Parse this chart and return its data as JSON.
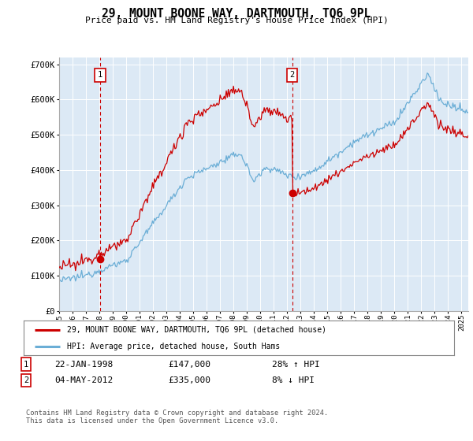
{
  "title": "29, MOUNT BOONE WAY, DARTMOUTH, TQ6 9PL",
  "subtitle": "Price paid vs. HM Land Registry's House Price Index (HPI)",
  "ylim": [
    0,
    720000
  ],
  "yticks": [
    0,
    100000,
    200000,
    300000,
    400000,
    500000,
    600000,
    700000
  ],
  "ytick_labels": [
    "£0",
    "£100K",
    "£200K",
    "£300K",
    "£400K",
    "£500K",
    "£600K",
    "£700K"
  ],
  "background_color": "#ffffff",
  "plot_bg_color": "#dce9f5",
  "grid_color": "#ffffff",
  "hpi_color": "#6baed6",
  "price_color": "#cc0000",
  "marker1_date": 1998.07,
  "marker1_price": 147000,
  "marker1_label": "1",
  "marker2_date": 2012.37,
  "marker2_price": 335000,
  "marker2_label": "2",
  "legend_line1": "29, MOUNT BOONE WAY, DARTMOUTH, TQ6 9PL (detached house)",
  "legend_line2": "HPI: Average price, detached house, South Hams",
  "footnote": "Contains HM Land Registry data © Crown copyright and database right 2024.\nThis data is licensed under the Open Government Licence v3.0.",
  "xmin": 1995.0,
  "xmax": 2025.5
}
